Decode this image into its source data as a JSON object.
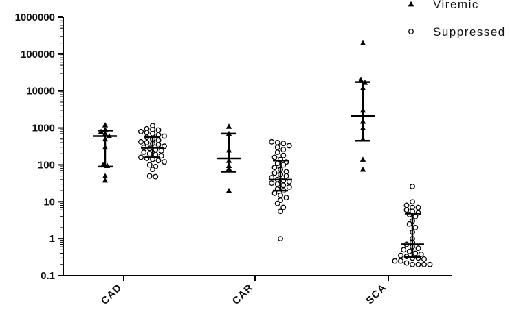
{
  "chart_data": {
    "type": "scatter",
    "yscale": "log",
    "ylim": [
      0.1,
      1000000
    ],
    "grid": false,
    "legend_position": "top-right",
    "y_ticks": [
      "0.1",
      "1",
      "10",
      "100",
      "1000",
      "10000",
      "100000",
      "1000000"
    ],
    "categories": [
      "CAD",
      "CAR",
      "SCA"
    ],
    "series": [
      {
        "name": "Viremic",
        "marker": "filled-triangle",
        "color": "#000000",
        "groups": [
          {
            "category": "CAD",
            "values": [
              1200,
              900,
              800,
              700,
              600,
              500,
              300,
              100,
              95,
              50,
              38
            ],
            "median": 600,
            "iqr": [
              90,
              850
            ]
          },
          {
            "category": "CAR",
            "values": [
              1100,
              700,
              250,
              130,
              95,
              80,
              20
            ],
            "median": 150,
            "iqr": [
              65,
              700
            ]
          },
          {
            "category": "SCA",
            "values": [
              200000,
              20000,
              17000,
              12000,
              3000,
              1500,
              1000,
              500,
              140,
              75
            ],
            "median": 2100,
            "iqr": [
              450,
              17500
            ]
          }
        ]
      },
      {
        "name": "Suppressed",
        "marker": "open-circle",
        "color": "#000000",
        "groups": [
          {
            "category": "CAD",
            "values": [
              1150,
              950,
              900,
              880,
              800,
              750,
              700,
              650,
              600,
              560,
              500,
              460,
              420,
              400,
              380,
              350,
              320,
              300,
              280,
              260,
              240,
              220,
              200,
              190,
              175,
              160,
              150,
              140,
              130,
              120,
              100,
              90,
              75,
              50,
              48
            ],
            "median": 290,
            "iqr": [
              160,
              560
            ]
          },
          {
            "category": "CAR",
            "values": [
              420,
              400,
              380,
              330,
              300,
              260,
              220,
              180,
              160,
              140,
              120,
              110,
              100,
              85,
              75,
              65,
              60,
              55,
              50,
              45,
              40,
              38,
              35,
              32,
              30,
              28,
              25,
              22,
              20,
              17,
              15,
              13,
              11,
              9,
              7,
              5.5,
              1
            ],
            "median": 40,
            "iqr": [
              20,
              130
            ]
          },
          {
            "category": "SCA",
            "values": [
              26,
              10,
              8,
              7,
              7,
              6,
              5.5,
              5,
              4.5,
              4,
              3,
              2.5,
              2,
              1.5,
              1,
              0.8,
              0.7,
              0.6,
              0.55,
              0.5,
              0.45,
              0.4,
              0.38,
              0.35,
              0.33,
              0.3,
              0.3,
              0.28,
              0.25,
              0.25,
              0.22,
              0.2,
              0.2,
              0.2,
              0.2
            ],
            "median": 0.7,
            "iqr": [
              0.32,
              4.8
            ]
          }
        ]
      }
    ]
  }
}
